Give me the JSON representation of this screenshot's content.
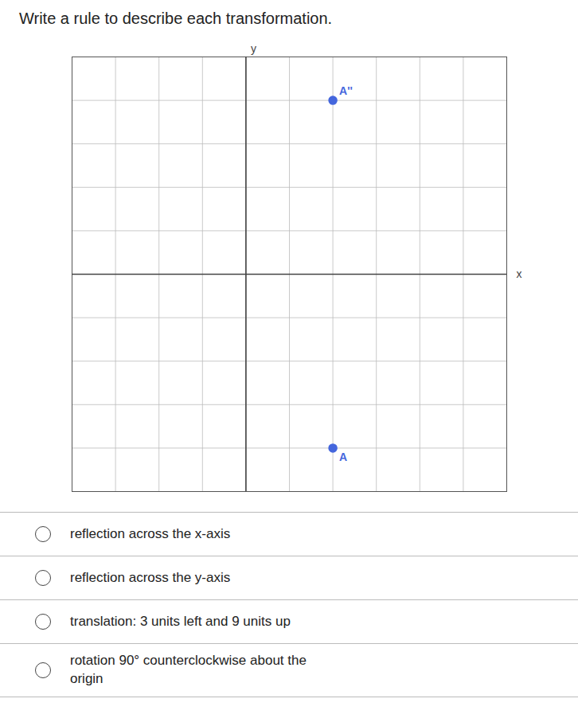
{
  "chart_data": {
    "type": "scatter",
    "title": "Write a rule to describe each transformation.",
    "x_label": "x",
    "y_label": "y",
    "x": [
      2,
      2
    ],
    "values": [
      4,
      -4
    ],
    "labels": [
      "A''",
      "A"
    ],
    "color": "#4466dd",
    "marker": "circle",
    "xlim": [
      -4,
      6
    ],
    "ylim": [
      -5,
      5
    ],
    "xticks": [
      -4,
      -3,
      -2,
      -1,
      0,
      1,
      2,
      3,
      4,
      5,
      6
    ],
    "yticks": [
      -5,
      -4,
      -3,
      -2,
      -1,
      0,
      1,
      2,
      3,
      4,
      5
    ],
    "grid": true,
    "tick_labels": false,
    "annotations": [
      "reflection across the x-axis",
      "reflection across the y-axis",
      "translation: 3 units left and 9 units up",
      "rotation 90° counterclockwise about the\norigin"
    ]
  }
}
